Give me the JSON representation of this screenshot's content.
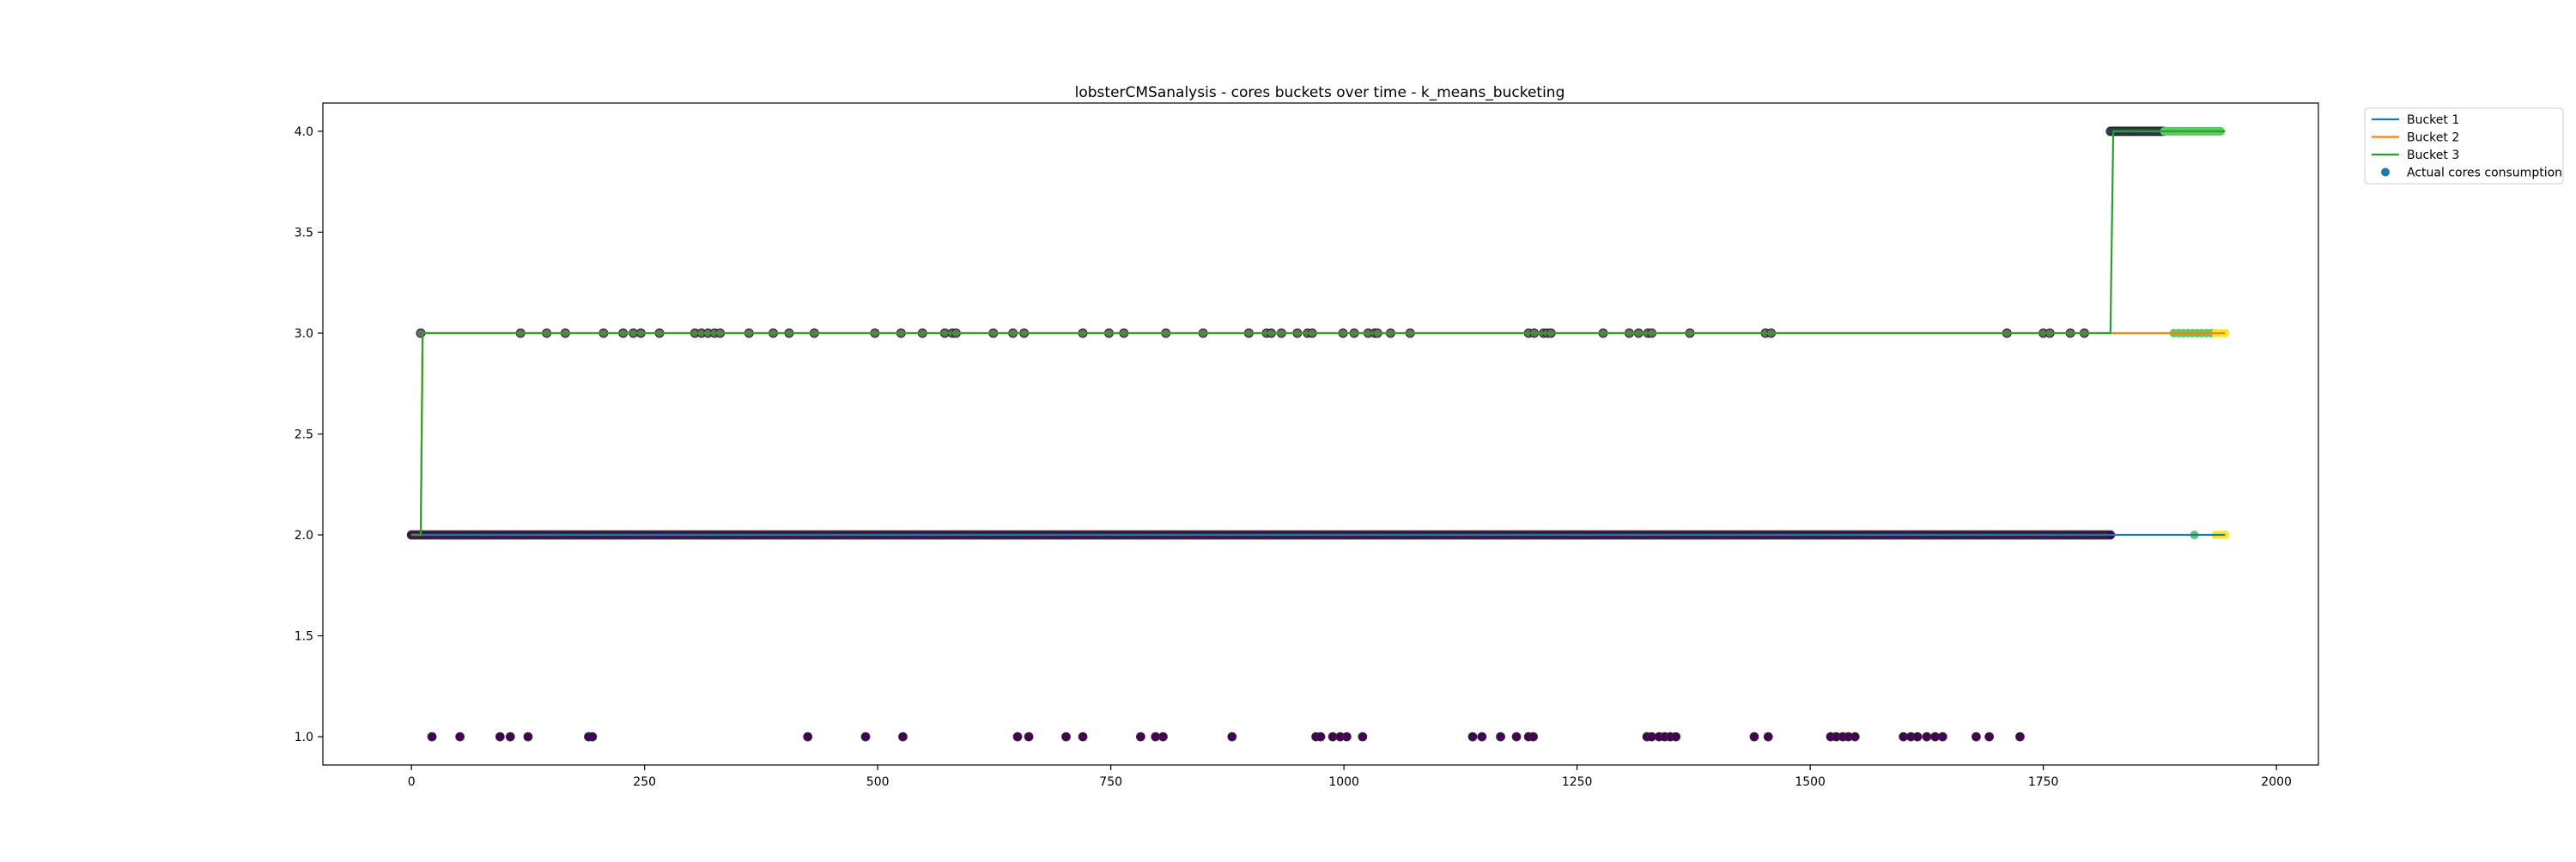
{
  "chart_data": {
    "type": "line",
    "title": "lobsterCMSanalysis - cores buckets over time - k_means_bucketing",
    "xlabel": "",
    "ylabel": "",
    "xlim": [
      -95,
      2045
    ],
    "ylim": [
      0.86,
      4.14
    ],
    "x_ticks": [
      0,
      250,
      500,
      750,
      1000,
      1250,
      1500,
      1750,
      2000
    ],
    "y_ticks": [
      1.0,
      1.5,
      2.0,
      2.5,
      3.0,
      3.5,
      4.0
    ],
    "y_tick_labels": [
      "1.0",
      "1.5",
      "2.0",
      "2.5",
      "3.0",
      "3.5",
      "4.0"
    ],
    "grid": false,
    "legend_position": "outside-top-right",
    "series": [
      {
        "name": "Bucket 1",
        "color": "#1f77b4",
        "kind": "step-line",
        "x": [
          0,
          10,
          12,
          1822,
          1825,
          1945
        ],
        "y": [
          2,
          2,
          2,
          2,
          2,
          2
        ]
      },
      {
        "name": "Bucket 2",
        "color": "#ff7f0e",
        "kind": "step-line",
        "x": [
          0,
          10,
          12,
          1822,
          1825,
          1945
        ],
        "y": [
          2,
          2,
          3,
          3,
          3,
          3
        ]
      },
      {
        "name": "Bucket 3",
        "color": "#2ca02c",
        "kind": "step-line",
        "x": [
          0,
          10,
          12,
          1822,
          1825,
          1945
        ],
        "y": [
          2,
          2,
          3,
          3,
          4,
          4
        ]
      },
      {
        "name": "Actual cores consumption",
        "color": "#1f77b4",
        "kind": "scatter",
        "points": {
          "y1": [
            22,
            52,
            95,
            106,
            125,
            190,
            194,
            425,
            487,
            527,
            650,
            662,
            702,
            720,
            782,
            798,
            806,
            880,
            970,
            975,
            988,
            996,
            1003,
            1020,
            1138,
            1148,
            1168,
            1185,
            1198,
            1203,
            1325,
            1330,
            1338,
            1344,
            1350,
            1356,
            1440,
            1455,
            1522,
            1528,
            1535,
            1541,
            1548,
            1600,
            1608,
            1615,
            1625,
            1634,
            1642,
            1678,
            1692,
            1725
          ],
          "y2_range": [
            0,
            1822
          ],
          "y3": [
            10,
            117,
            145,
            165,
            206,
            227,
            238,
            246,
            266,
            304,
            311,
            318,
            325,
            331,
            362,
            388,
            405,
            432,
            497,
            525,
            548,
            572,
            580,
            584,
            624,
            645,
            657,
            720,
            748,
            764,
            809,
            849,
            898,
            917,
            922,
            933,
            950,
            961,
            966,
            999,
            1011,
            1026,
            1033,
            1036,
            1050,
            1071,
            1198,
            1204,
            1214,
            1218,
            1222,
            1278,
            1306,
            1316,
            1326,
            1330,
            1371,
            1452,
            1458,
            1711,
            1750,
            1757,
            1779,
            1794
          ],
          "y4_range": [
            1822,
            1880
          ],
          "green_y4_range": [
            1880,
            1940
          ],
          "green_y3": [
            1890,
            1895,
            1900,
            1905,
            1910,
            1915,
            1920,
            1925,
            1930
          ],
          "yellow_y3": [
            1935,
            1940,
            1945
          ],
          "green_y2": [
            1912
          ],
          "yellow_y2": [
            1935,
            1940,
            1945
          ]
        }
      }
    ]
  }
}
